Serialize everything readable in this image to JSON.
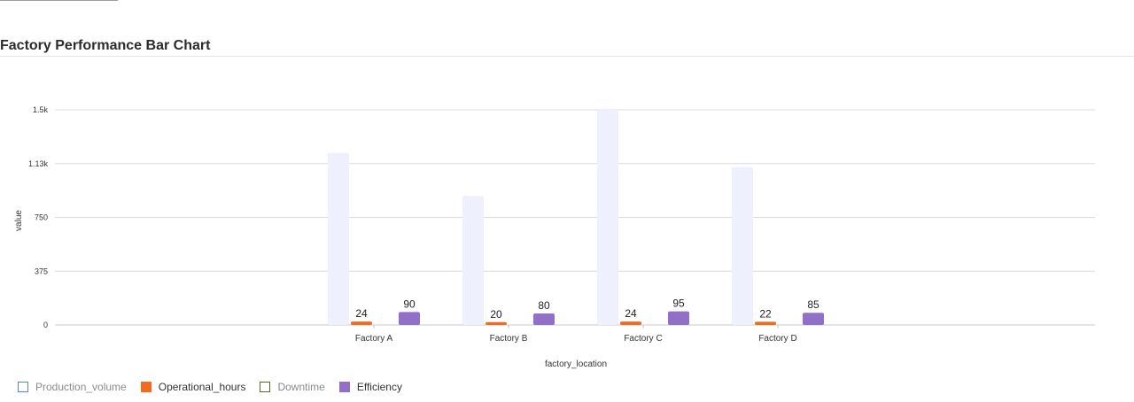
{
  "page": {
    "title": "Factory Performance Bar Chart"
  },
  "chart_data": {
    "type": "bar",
    "title": "",
    "xlabel": "factory_location",
    "ylabel": "value",
    "categories": [
      "Factory A",
      "Factory B",
      "Factory C",
      "Factory D"
    ],
    "ylim": [
      0,
      1500
    ],
    "yticks": [
      {
        "value": 0,
        "label": "0"
      },
      {
        "value": 375,
        "label": "375"
      },
      {
        "value": 750,
        "label": "750"
      },
      {
        "value": 1125,
        "label": "1.13k"
      },
      {
        "value": 1500,
        "label": "1.5k"
      }
    ],
    "grid": true,
    "legend_position": "bottom-left",
    "series": [
      {
        "name": "Production_volume",
        "values": [
          1200,
          900,
          1500,
          1100
        ],
        "color": "#eef0fd",
        "legend_border": "#5b7fd6",
        "legend_fill": "#ffffff",
        "legend_text_color": "#8a8a8a",
        "show_labels": false
      },
      {
        "name": "Operational_hours",
        "values": [
          24,
          20,
          24,
          22
        ],
        "color": "#f46a1f",
        "legend_border": "#f46a1f",
        "legend_fill": "#f46a1f",
        "legend_text_color": "#333333",
        "show_labels": true
      },
      {
        "name": "Downtime",
        "values": [
          0,
          0,
          0,
          0
        ],
        "color": "#ffffff",
        "legend_border": "#4f6b2a",
        "legend_fill": "#ffffff",
        "legend_text_color": "#8a8a8a",
        "show_labels": false
      },
      {
        "name": "Efficiency",
        "values": [
          90,
          80,
          95,
          85
        ],
        "color": "#9370c8",
        "legend_border": "#9370c8",
        "legend_fill": "#9370c8",
        "legend_text_color": "#333333",
        "show_labels": true
      }
    ]
  }
}
